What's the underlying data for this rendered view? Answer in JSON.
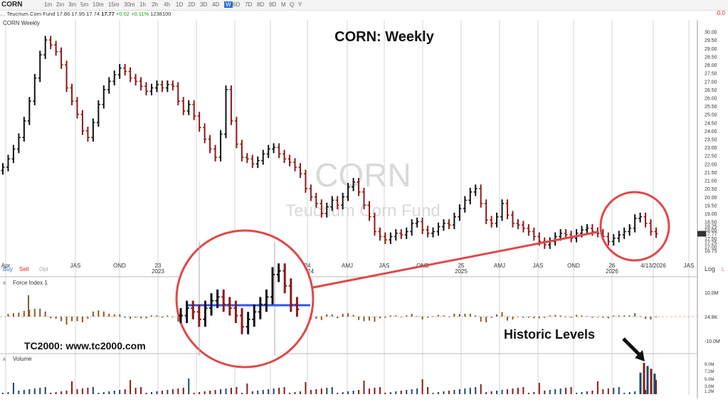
{
  "app": {
    "symbol": "CORN",
    "timeframes": [
      "1m",
      "2m",
      "3m",
      "5m",
      "10m",
      "15m",
      "30m",
      "1h",
      "2h",
      "4h",
      "1D",
      "2D",
      "3D",
      "4D",
      "W",
      "6D",
      "7D",
      "8D",
      "9D",
      "M",
      "Q",
      "Y"
    ],
    "selected_timeframe": "W",
    "quote": {
      "name": "Teucrium Corn Fund",
      "open": "17.86",
      "high": "17.95",
      "low": "17.74",
      "last": "17.77",
      "change": "+0.02",
      "change_pct": "+0.11%",
      "volume": "1238100"
    },
    "right_change": "-0.0",
    "chart_label": "CORN Weekly",
    "overlay_title": "CORN:  Weekly",
    "watermark_symbol": "CORN",
    "watermark_name": "Teucrium Corn Fund",
    "price_tabs": [
      "Buy",
      "Sell",
      "Opt"
    ],
    "log_label": "Log",
    "current_date": "4/13/2026",
    "force_label": "Force Index 1",
    "volume_label": "Volume",
    "branding": "TC2000:  www.tc2000.com",
    "annotation": "Historic Levels",
    "colors": {
      "up": "#111111",
      "down": "#8b1a1a",
      "circle": "#e04848",
      "mean": "#3355ee",
      "force": "#8b5a2b",
      "vol_down": "#8b1a1a",
      "vol_up": "#1a4a6a"
    }
  },
  "chart_data": {
    "type": "bar",
    "title": "CORN:  Weekly",
    "price_axis": {
      "ticks": [
        "30.00",
        "29.50",
        "29.00",
        "28.50",
        "28.00",
        "27.50",
        "27.00",
        "26.50",
        "26.00",
        "25.50",
        "25.00",
        "24.50",
        "24.00",
        "23.50",
        "23.00",
        "22.50",
        "22.00",
        "21.50",
        "21.00",
        "20.50",
        "20.00",
        "19.50",
        "19.00",
        "18.50",
        "18.25",
        "18.00",
        "17.77",
        "17.50",
        "17.25",
        "17.00",
        "16.75"
      ],
      "range": [
        16.5,
        30.2
      ]
    },
    "time_axis": [
      "Apr",
      "JAS",
      "OND",
      "23",
      "AMJ",
      "JAS",
      "OND",
      "24",
      "AMJ",
      "JAS",
      "OND",
      "25",
      "AMJ",
      "JAS",
      "OND",
      "26",
      "4/13/2026",
      "JAS"
    ],
    "year_labels": [
      "2023",
      "2024",
      "2025",
      "2026"
    ],
    "series": [
      {
        "name": "CORN",
        "close_weekly_approx": [
          21.8,
          22.3,
          22.9,
          23.6,
          24.6,
          25.8,
          27.2,
          28.6,
          29.5,
          29.2,
          28.8,
          28.0,
          26.6,
          25.8,
          25.0,
          24.0,
          23.6,
          24.5,
          25.6,
          26.5,
          27.0,
          27.4,
          27.8,
          27.6,
          27.2,
          27.0,
          26.7,
          26.4,
          26.6,
          26.8,
          26.6,
          26.8,
          26.7,
          25.8,
          25.2,
          25.6,
          24.9,
          24.2,
          23.5,
          22.9,
          22.4,
          23.8,
          26.5,
          24.6,
          23.2,
          22.4,
          22.3,
          22.0,
          22.2,
          22.6,
          22.9,
          23.0,
          22.6,
          22.3,
          22.1,
          21.8,
          21.4,
          20.5,
          20.0,
          19.6,
          19.0,
          19.4,
          19.8,
          19.5,
          20.0,
          20.6,
          20.9,
          20.3,
          19.5,
          18.8,
          17.9,
          17.6,
          17.4,
          17.6,
          17.8,
          17.7,
          17.9,
          18.4,
          18.5,
          18.0,
          17.8,
          17.9,
          18.2,
          18.4,
          18.3,
          18.8,
          19.3,
          19.8,
          20.3,
          20.5,
          19.6,
          18.6,
          18.4,
          18.8,
          19.6,
          18.9,
          18.4,
          18.3,
          18.1,
          17.9,
          17.6,
          17.3,
          17.1,
          17.3,
          17.6,
          17.8,
          17.7,
          17.5,
          17.8,
          18.0,
          18.1,
          17.9,
          17.8,
          17.6,
          17.3,
          17.5,
          17.7,
          17.9,
          18.1,
          18.7,
          18.8,
          18.4,
          17.9,
          17.77
        ]
      }
    ],
    "force_index": {
      "label": "Force Index 1",
      "axis": [
        "10.0M",
        "24.8K",
        "-10.0M"
      ]
    },
    "volume": {
      "label": "Volume",
      "axis": [
        "9.0M",
        "7.2M",
        "5.0M",
        "3.0M",
        "1.2M"
      ],
      "recent_millions": [
        6.2,
        9.0,
        8.1,
        7.3,
        5.9
      ]
    }
  }
}
